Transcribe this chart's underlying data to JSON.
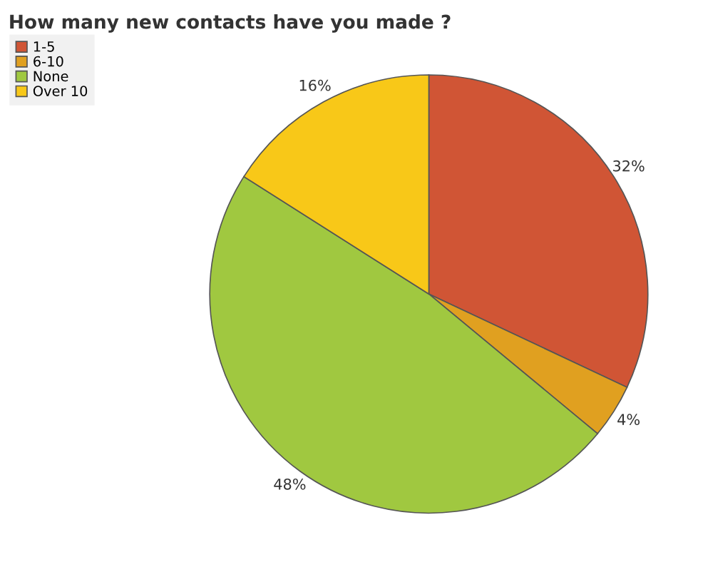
{
  "chart_data": {
    "type": "pie",
    "title": "How many new contacts have you made ?",
    "categories": [
      "1-5",
      "6-10",
      "None",
      "Over 10"
    ],
    "values": [
      32,
      4,
      48,
      16
    ],
    "value_labels": [
      "32%",
      "4%",
      "48%",
      "16%"
    ],
    "colors": [
      "#d05535",
      "#e0a020",
      "#a0c840",
      "#f8c818"
    ],
    "legend": "top left"
  }
}
